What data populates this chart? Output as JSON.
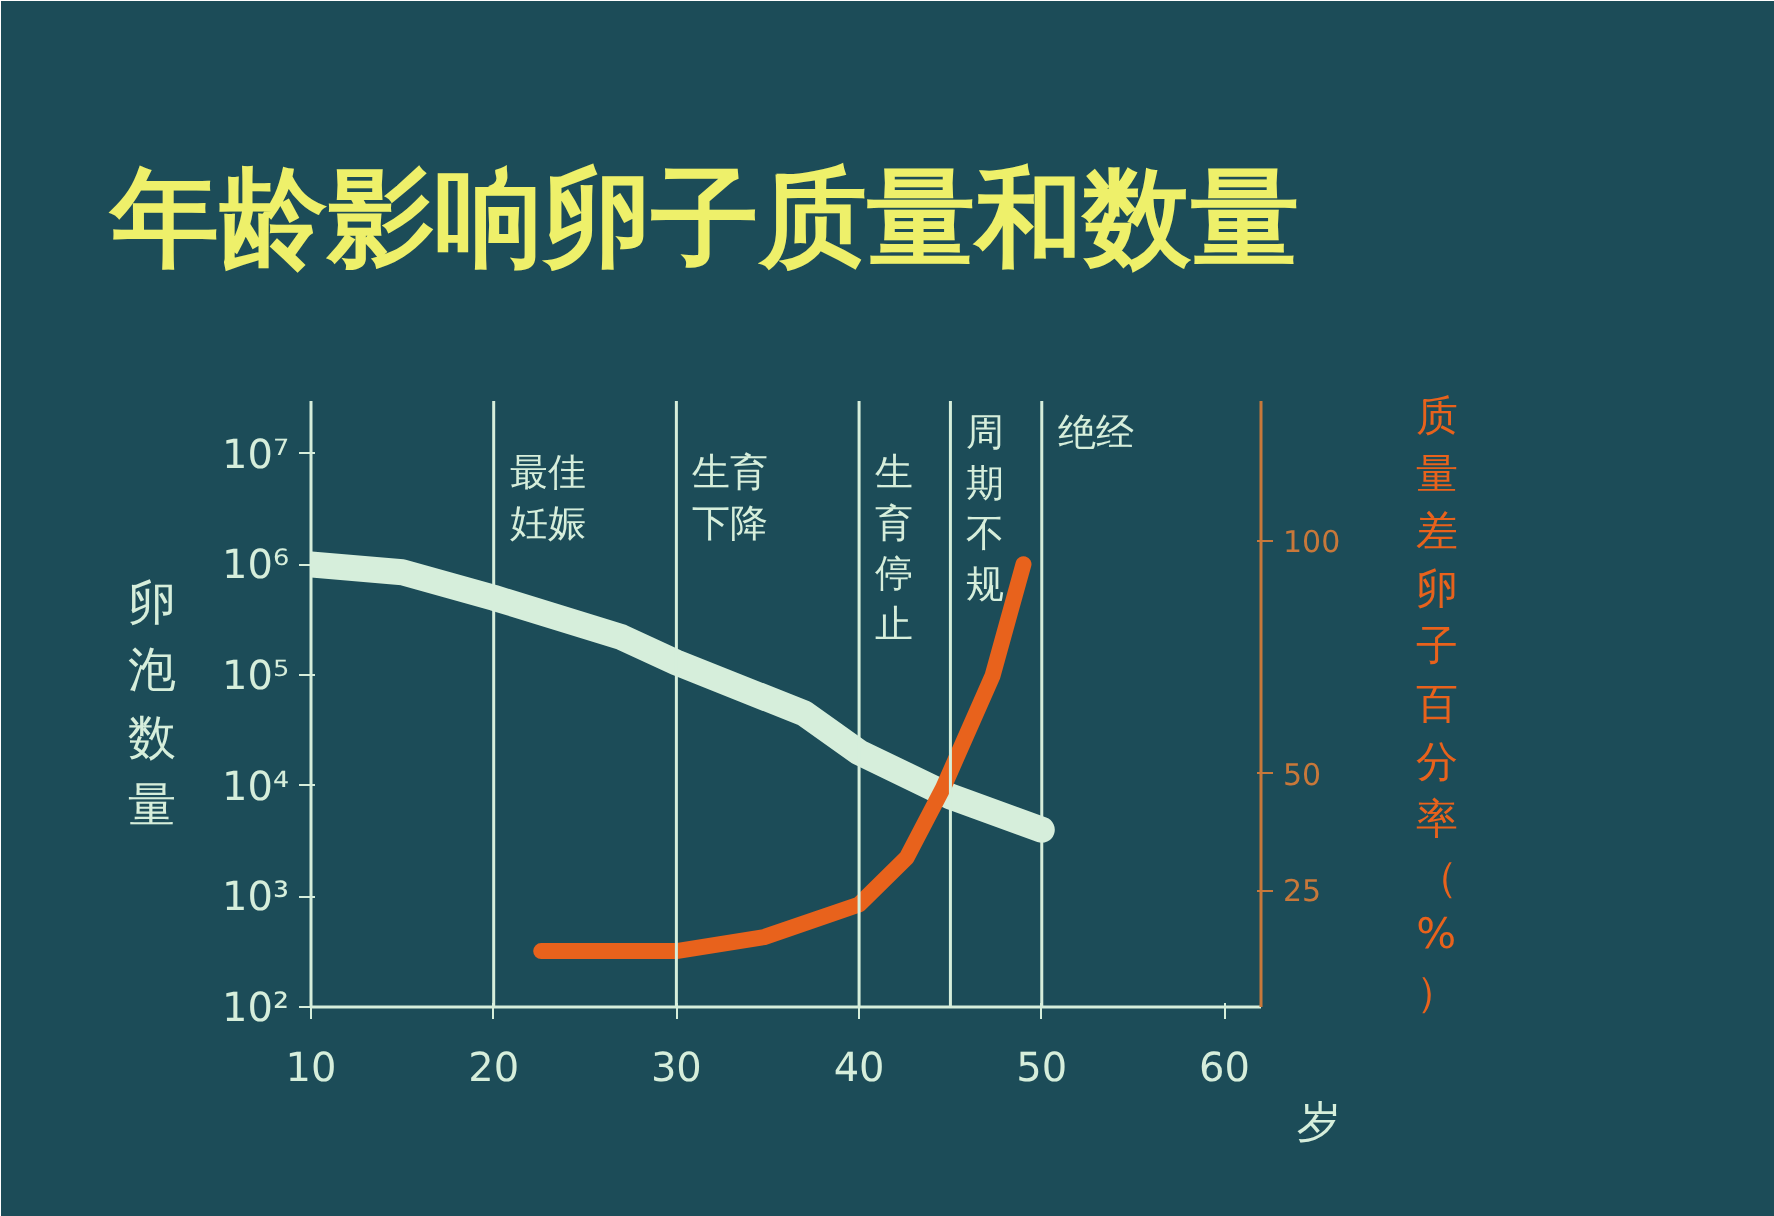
{
  "chart_data": {
    "type": "line",
    "title": "年龄影响卵子质量和数量",
    "xlabel": "岁",
    "ylabel": "卵泡数量",
    "y2label": "质量差卵子百分率（%）",
    "x": [
      10,
      15,
      20,
      27,
      30,
      37,
      40,
      45,
      50
    ],
    "series": [
      {
        "color": "#d6eedb",
        "values": [
          1000000,
          850000,
          500000,
          220000,
          130000,
          45000,
          20000,
          8000,
          4000
        ]
      },
      {
        "color": "#e8621c",
        "axis": "y2",
        "x": [
          22.6,
          30,
          34.8,
          40,
          42.6,
          44.6,
          47.3,
          49
        ],
        "values": [
          12,
          12,
          15,
          22,
          32,
          47,
          71,
          95
        ]
      }
    ],
    "log": "y",
    "xlim": [
      10,
      62
    ],
    "xticks": [
      10,
      20,
      30,
      40,
      50,
      60
    ],
    "ylim": [
      100,
      30000000
    ],
    "yticks": [
      {
        "value": 100,
        "label": "10²"
      },
      {
        "value": 1000,
        "label": "10³"
      },
      {
        "value": 10000,
        "label": "10⁴"
      },
      {
        "value": 100000,
        "label": "10⁵"
      },
      {
        "value": 1000000,
        "label": "10⁶"
      },
      {
        "value": 10000000,
        "label": "10⁷"
      }
    ],
    "y2lim": [
      0,
      130
    ],
    "y2ticks": [
      25,
      50,
      100
    ],
    "ref_lines": [
      {
        "axis": "x",
        "value": 20,
        "label": "最佳妊娠"
      },
      {
        "axis": "x",
        "value": 30,
        "label": "生育下降"
      },
      {
        "axis": "x",
        "value": 40,
        "label": "生育停止"
      },
      {
        "axis": "x",
        "value": 45,
        "label": "周期不规"
      },
      {
        "axis": "x",
        "value": 50,
        "label": "绝经"
      }
    ],
    "grid": false,
    "marker": "none",
    "line_style": "solid"
  }
}
